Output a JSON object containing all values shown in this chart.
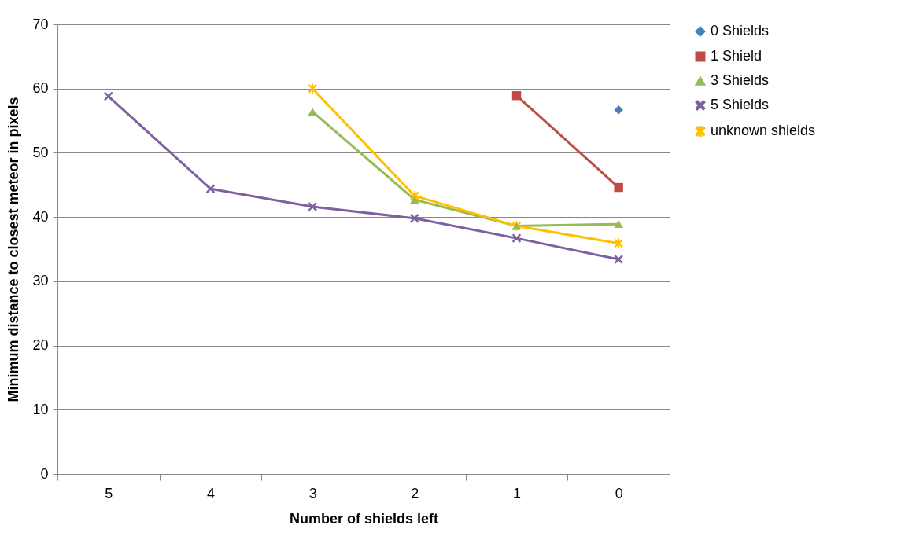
{
  "chart_data": {
    "type": "line",
    "xlabel": "Number of shields left",
    "ylabel": "Minimum distance to closest meteor in pixels",
    "categories": [
      "5",
      "4",
      "3",
      "2",
      "1",
      "0"
    ],
    "series": [
      {
        "name": "0 Shields",
        "color": "#4a7ebb",
        "marker": "diamond",
        "values": [
          null,
          null,
          null,
          null,
          null,
          56.7
        ]
      },
      {
        "name": "1 Shield",
        "color": "#be4b48",
        "marker": "square",
        "values": [
          null,
          null,
          null,
          null,
          58.9,
          44.6
        ]
      },
      {
        "name": "3 Shields",
        "color": "#98b954",
        "marker": "triangle",
        "values": [
          null,
          null,
          56.4,
          42.7,
          38.6,
          38.9
        ]
      },
      {
        "name": "5 Shields",
        "color": "#7d60a0",
        "marker": "cross",
        "values": [
          58.8,
          44.4,
          41.6,
          39.8,
          36.7,
          33.4
        ]
      },
      {
        "name": "unknown shields",
        "color": "#ffc000",
        "marker": "star",
        "values": [
          null,
          null,
          60.0,
          43.3,
          38.6,
          35.9
        ]
      }
    ],
    "ylim": [
      0,
      70
    ],
    "yticks": [
      0,
      10,
      20,
      30,
      40,
      50,
      60,
      70
    ],
    "grid": "y",
    "legend": "right",
    "line_style": "solid"
  }
}
